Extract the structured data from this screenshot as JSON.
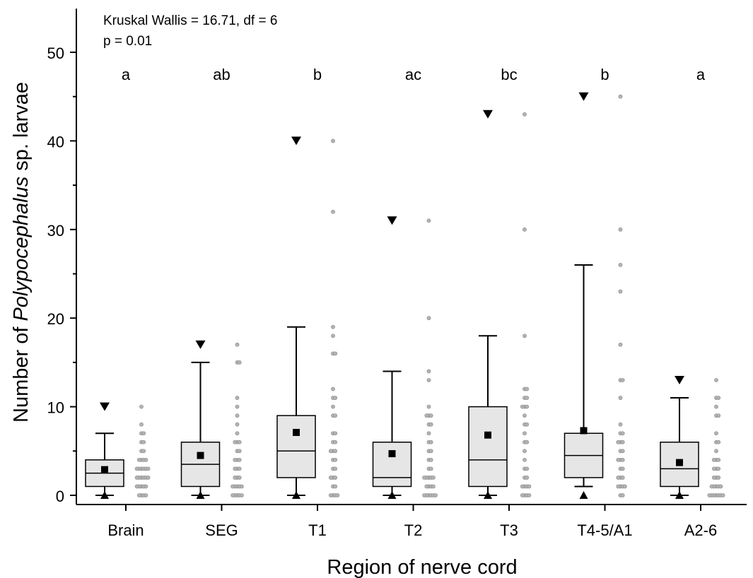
{
  "chart_data": {
    "type": "box",
    "xlabel": "Region of nerve cord",
    "ylabel_parts": [
      "Number of ",
      "Polypocephalus",
      " sp. larvae"
    ],
    "ylim": [
      0,
      55
    ],
    "yticks": [
      0,
      10,
      20,
      30,
      40,
      50
    ],
    "yticks_minor": [
      5,
      15,
      25,
      35,
      45
    ],
    "stats": {
      "line1": "Kruskal Wallis = 16.71, df = 6",
      "line2": "p = 0.01"
    },
    "categories": [
      "Brain",
      "SEG",
      "T1",
      "T2",
      "T3",
      "T4-5/A1",
      "A2-6"
    ],
    "letters": [
      "a",
      "ab",
      "b",
      "ac",
      "bc",
      "b",
      "a"
    ],
    "box_fill": "#e6e6e6",
    "point_color": "#b3b3b3",
    "boxes": [
      {
        "q1": 1,
        "median": 2.5,
        "q3": 4,
        "whisker_low": 0,
        "whisker_high": 7,
        "mean": 2.9,
        "max": 10,
        "min": 0,
        "points": [
          10,
          8,
          7,
          7,
          6,
          6,
          5,
          5,
          4,
          4,
          4,
          4,
          3,
          3,
          3,
          3,
          3,
          3,
          2,
          2,
          2,
          2,
          2,
          2,
          1,
          1,
          1,
          1,
          1,
          0,
          0,
          0,
          0
        ]
      },
      {
        "q1": 1,
        "median": 3.5,
        "q3": 6,
        "whisker_low": 0,
        "whisker_high": 15,
        "mean": 4.5,
        "max": 17,
        "min": 0,
        "points": [
          17,
          15,
          15,
          11,
          10,
          9,
          8,
          7,
          6,
          6,
          6,
          5,
          5,
          4,
          4,
          4,
          3,
          3,
          3,
          2,
          2,
          2,
          1,
          1,
          1,
          1,
          1,
          0,
          0,
          0,
          0,
          0
        ]
      },
      {
        "q1": 2,
        "median": 5,
        "q3": 9,
        "whisker_low": 0,
        "whisker_high": 19,
        "mean": 7.1,
        "max": 40,
        "min": 0,
        "points": [
          40,
          32,
          19,
          18,
          16,
          16,
          12,
          11,
          11,
          10,
          9,
          9,
          7,
          7,
          6,
          6,
          5,
          5,
          5,
          4,
          4,
          3,
          3,
          2,
          2,
          2,
          1,
          1,
          0,
          0,
          0,
          0
        ]
      },
      {
        "q1": 1,
        "median": 2,
        "q3": 6,
        "whisker_low": 0,
        "whisker_high": 14,
        "mean": 4.7,
        "max": 31,
        "min": 0,
        "points": [
          31,
          20,
          14,
          13,
          10,
          9,
          9,
          9,
          8,
          8,
          7,
          6,
          6,
          5,
          5,
          4,
          4,
          3,
          3,
          2,
          2,
          2,
          2,
          2,
          1,
          1,
          1,
          1,
          0,
          0,
          0,
          0,
          0,
          0
        ]
      },
      {
        "q1": 1,
        "median": 4,
        "q3": 10,
        "whisker_low": 0,
        "whisker_high": 18,
        "mean": 6.8,
        "max": 43,
        "min": 0,
        "points": [
          43,
          30,
          18,
          12,
          12,
          11,
          11,
          10,
          10,
          10,
          9,
          8,
          8,
          7,
          6,
          6,
          5,
          4,
          3,
          3,
          2,
          2,
          1,
          1,
          1,
          1,
          0,
          0,
          0,
          0
        ]
      },
      {
        "q1": 2,
        "median": 4.5,
        "q3": 7,
        "whisker_low": 1,
        "whisker_high": 26,
        "mean": 7.3,
        "max": 45,
        "min": 0,
        "points": [
          45,
          30,
          26,
          23,
          17,
          13,
          13,
          11,
          8,
          7,
          7,
          6,
          6,
          6,
          5,
          5,
          4,
          4,
          4,
          3,
          3,
          2,
          2,
          2,
          1,
          1,
          1,
          1,
          0,
          0
        ]
      },
      {
        "q1": 1,
        "median": 3,
        "q3": 6,
        "whisker_low": 0,
        "whisker_high": 11,
        "mean": 3.7,
        "max": 13,
        "min": 0,
        "points": [
          13,
          11,
          11,
          10,
          9,
          9,
          7,
          6,
          6,
          5,
          4,
          4,
          4,
          3,
          3,
          3,
          2,
          2,
          2,
          1,
          1,
          1,
          1,
          1,
          0,
          0,
          0,
          0,
          0,
          0,
          0
        ]
      }
    ]
  }
}
